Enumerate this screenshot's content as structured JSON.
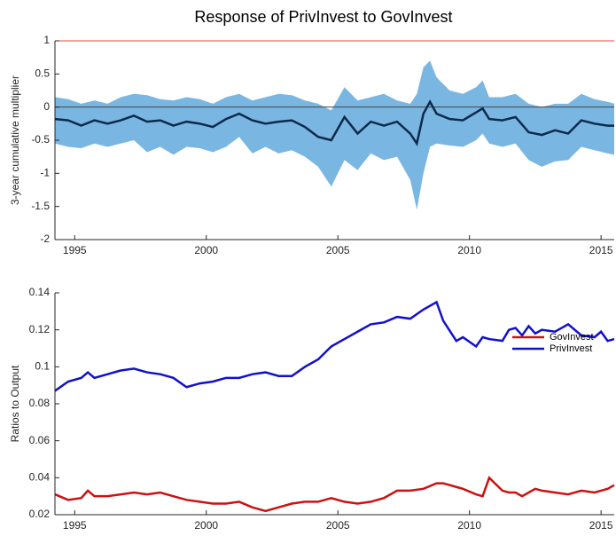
{
  "chart_data": [
    {
      "type": "band-line",
      "title": "Response of PrivInvest to GovInvest",
      "ylabel": "3-year cumulative multiplier",
      "x": [
        1994.25,
        1994.75,
        1995.25,
        1995.75,
        1996.25,
        1996.75,
        1997.25,
        1997.75,
        1998.25,
        1998.75,
        1999.25,
        1999.75,
        2000.25,
        2000.75,
        2001.25,
        2001.75,
        2002.25,
        2002.75,
        2003.25,
        2003.75,
        2004.25,
        2004.75,
        2005.25,
        2005.75,
        2006.25,
        2006.75,
        2007.25,
        2007.75,
        2008.0,
        2008.25,
        2008.5,
        2008.75,
        2009.25,
        2009.75,
        2010.25,
        2010.5,
        2010.75,
        2011.25,
        2011.75,
        2012.25,
        2012.75,
        2013.25,
        2013.75,
        2014.25,
        2014.75,
        2015.25,
        2015.5
      ],
      "line": {
        "color": "#0b2a4c",
        "values": [
          -0.18,
          -0.2,
          -0.28,
          -0.2,
          -0.25,
          -0.2,
          -0.13,
          -0.22,
          -0.2,
          -0.28,
          -0.22,
          -0.25,
          -0.3,
          -0.18,
          -0.1,
          -0.2,
          -0.25,
          -0.22,
          -0.2,
          -0.3,
          -0.45,
          -0.5,
          -0.15,
          -0.4,
          -0.22,
          -0.28,
          -0.22,
          -0.4,
          -0.55,
          -0.1,
          0.08,
          -0.1,
          -0.18,
          -0.2,
          -0.08,
          -0.02,
          -0.18,
          -0.2,
          -0.15,
          -0.38,
          -0.42,
          -0.35,
          -0.4,
          -0.2,
          -0.25,
          -0.28,
          -0.28
        ]
      },
      "band": {
        "color": "#7ab6e2",
        "lower": [
          -0.55,
          -0.6,
          -0.62,
          -0.55,
          -0.6,
          -0.55,
          -0.5,
          -0.68,
          -0.6,
          -0.72,
          -0.6,
          -0.62,
          -0.68,
          -0.6,
          -0.45,
          -0.7,
          -0.6,
          -0.7,
          -0.65,
          -0.75,
          -0.9,
          -1.2,
          -0.8,
          -0.95,
          -0.7,
          -0.8,
          -0.75,
          -1.1,
          -1.55,
          -1.0,
          -0.6,
          -0.55,
          -0.58,
          -0.6,
          -0.5,
          -0.4,
          -0.55,
          -0.6,
          -0.55,
          -0.8,
          -0.9,
          -0.82,
          -0.8,
          -0.6,
          -0.65,
          -0.7,
          -0.72
        ],
        "upper": [
          0.15,
          0.12,
          0.05,
          0.1,
          0.05,
          0.15,
          0.2,
          0.18,
          0.12,
          0.1,
          0.15,
          0.12,
          0.05,
          0.15,
          0.2,
          0.1,
          0.15,
          0.2,
          0.18,
          0.1,
          0.05,
          -0.05,
          0.3,
          0.1,
          0.15,
          0.2,
          0.1,
          0.05,
          0.2,
          0.6,
          0.7,
          0.45,
          0.25,
          0.2,
          0.3,
          0.4,
          0.15,
          0.15,
          0.2,
          0.05,
          0.0,
          0.05,
          0.05,
          0.2,
          0.12,
          0.08,
          0.05
        ]
      },
      "hlines": [
        {
          "value": 1,
          "color": "#e8443a"
        },
        {
          "value": 0,
          "color": "#444444"
        }
      ],
      "xlim": [
        1994.25,
        2015.5
      ],
      "xticks": [
        1995,
        2000,
        2005,
        2010,
        2015
      ],
      "ylim": [
        -2,
        1
      ],
      "yticks": [
        -2,
        -1.5,
        -1,
        -0.5,
        0,
        0.5,
        1
      ]
    },
    {
      "type": "line",
      "ylabel": "Ratios to Output",
      "legend": "upper right",
      "x": [
        1994.25,
        1994.75,
        1995.25,
        1995.5,
        1995.75,
        1996.25,
        1996.75,
        1997.25,
        1997.75,
        1998.25,
        1998.75,
        1999.25,
        1999.75,
        2000.25,
        2000.75,
        2001.25,
        2001.75,
        2002.25,
        2002.75,
        2003.25,
        2003.75,
        2004.25,
        2004.75,
        2005.25,
        2005.75,
        2006.25,
        2006.75,
        2007.25,
        2007.75,
        2008.25,
        2008.75,
        2009.0,
        2009.5,
        2009.75,
        2010.25,
        2010.5,
        2010.75,
        2011.25,
        2011.5,
        2011.75,
        2012.0,
        2012.25,
        2012.5,
        2012.75,
        2013.25,
        2013.75,
        2014.25,
        2014.75,
        2015.0,
        2015.25,
        2015.5
      ],
      "series": [
        {
          "name": "GovInvest",
          "color": "#cc1111",
          "values": [
            0.031,
            0.028,
            0.029,
            0.033,
            0.03,
            0.03,
            0.031,
            0.032,
            0.031,
            0.032,
            0.03,
            0.028,
            0.027,
            0.026,
            0.026,
            0.027,
            0.024,
            0.022,
            0.024,
            0.026,
            0.027,
            0.027,
            0.029,
            0.027,
            0.026,
            0.027,
            0.029,
            0.033,
            0.033,
            0.034,
            0.037,
            0.037,
            0.035,
            0.034,
            0.031,
            0.03,
            0.04,
            0.033,
            0.032,
            0.032,
            0.03,
            0.032,
            0.034,
            0.033,
            0.032,
            0.031,
            0.033,
            0.032,
            0.033,
            0.034,
            0.036
          ]
        },
        {
          "name": "PrivInvest",
          "color": "#1111cc",
          "values": [
            0.087,
            0.092,
            0.094,
            0.097,
            0.094,
            0.096,
            0.098,
            0.099,
            0.097,
            0.096,
            0.094,
            0.089,
            0.091,
            0.092,
            0.094,
            0.094,
            0.096,
            0.097,
            0.095,
            0.095,
            0.1,
            0.104,
            0.111,
            0.115,
            0.119,
            0.123,
            0.124,
            0.127,
            0.126,
            0.131,
            0.135,
            0.125,
            0.114,
            0.116,
            0.111,
            0.116,
            0.115,
            0.114,
            0.12,
            0.121,
            0.117,
            0.122,
            0.118,
            0.12,
            0.119,
            0.123,
            0.117,
            0.116,
            0.119,
            0.114,
            0.115
          ]
        }
      ],
      "xlim": [
        1994.25,
        2015.5
      ],
      "xticks": [
        1995,
        2000,
        2005,
        2010,
        2015
      ],
      "ylim": [
        0.02,
        0.14
      ],
      "yticks": [
        0.02,
        0.04,
        0.06,
        0.08,
        0.1,
        0.12,
        0.14
      ]
    }
  ]
}
